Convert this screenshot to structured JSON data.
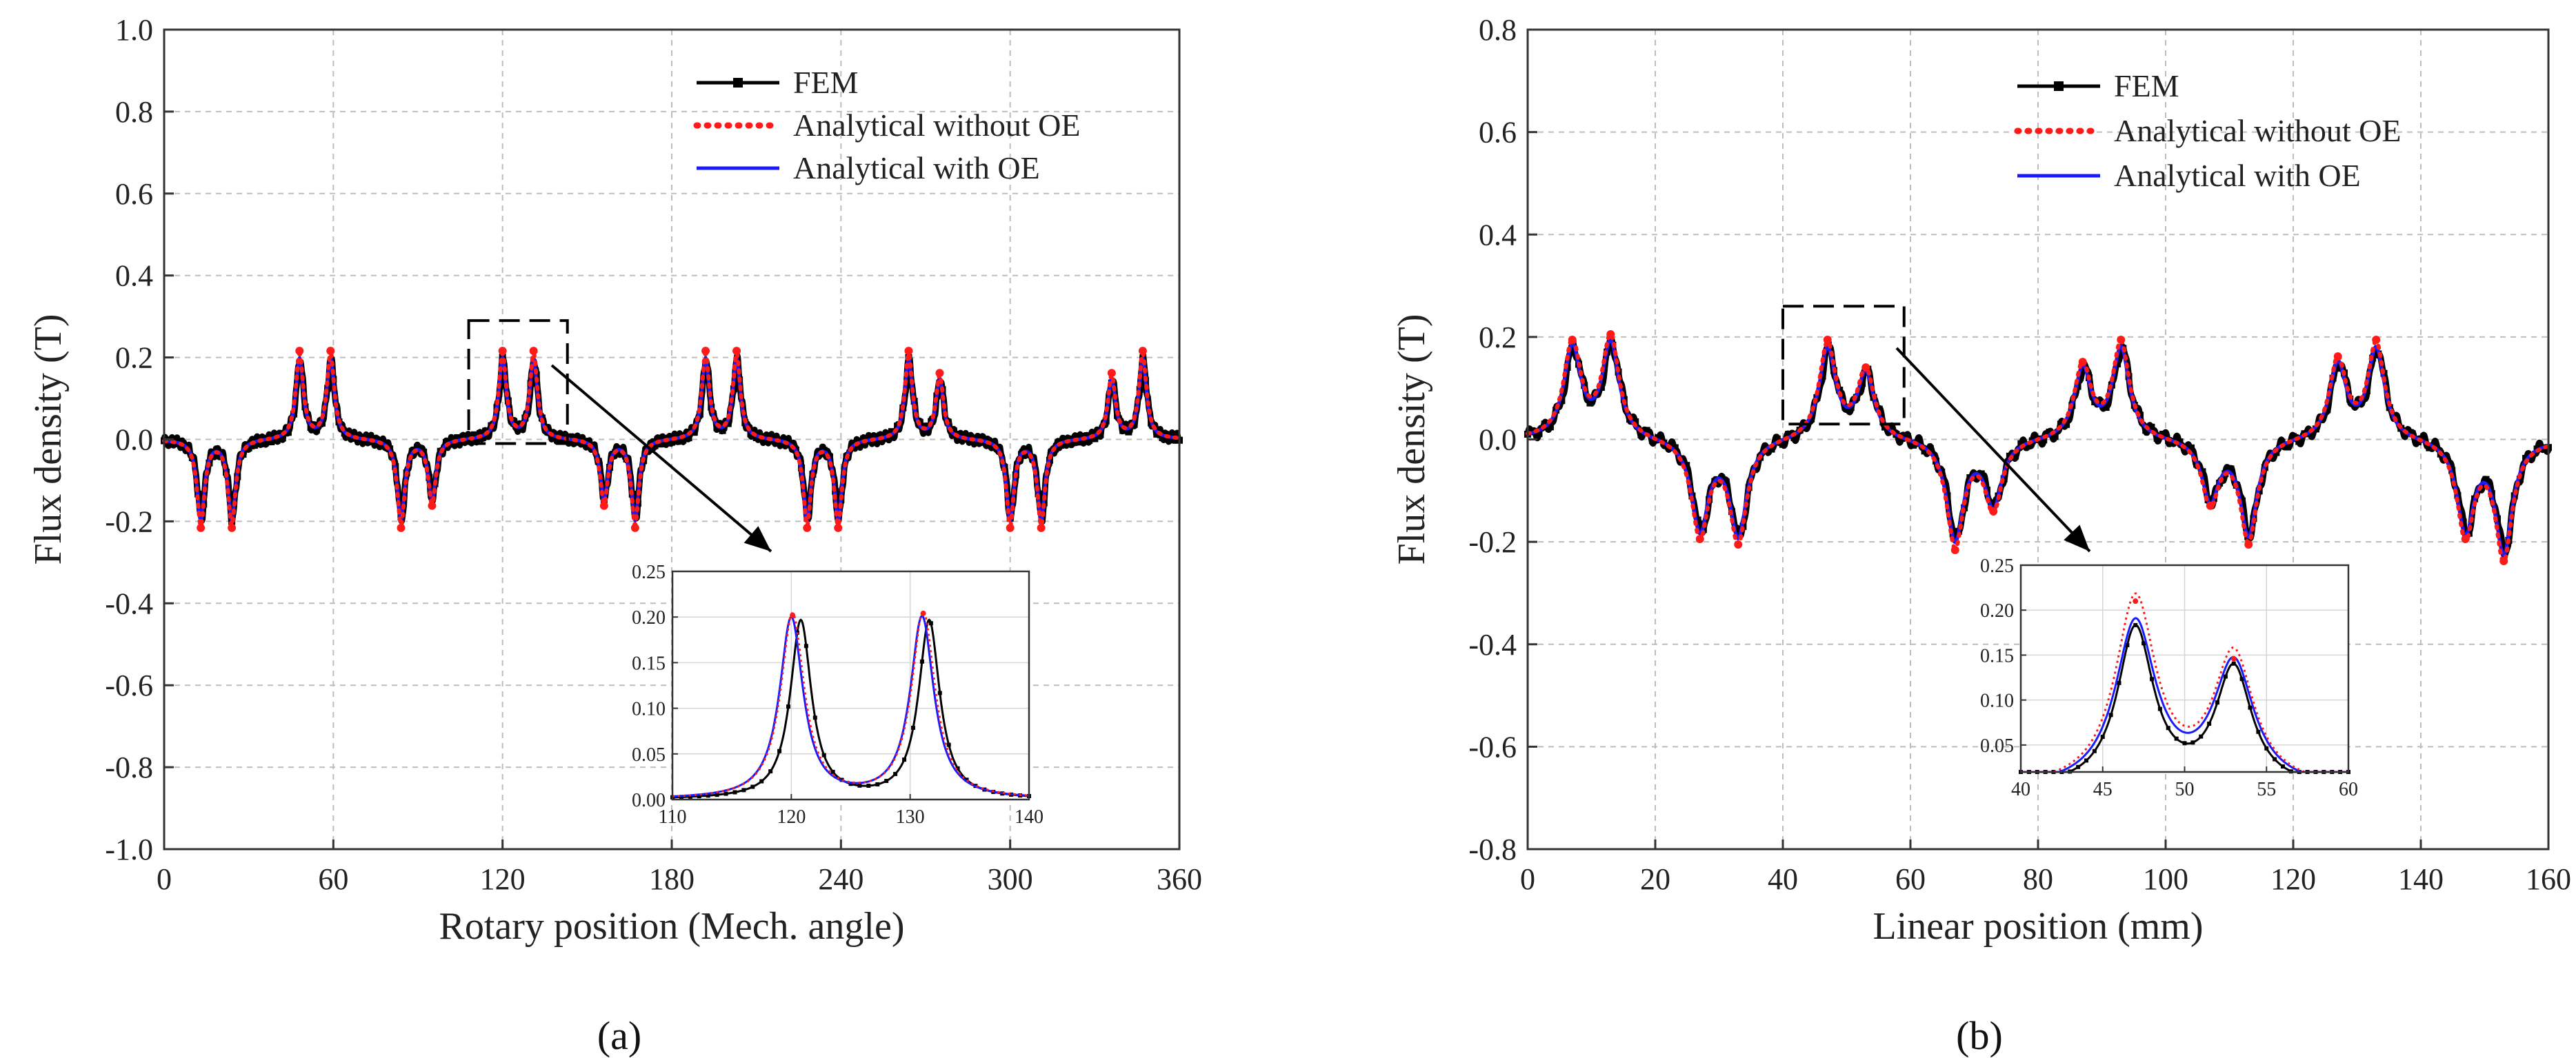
{
  "figure": {
    "captions": [
      "(a)",
      "(b)"
    ]
  },
  "chart_data": [
    {
      "type": "line",
      "panel": "a",
      "xlabel": "Rotary position (Mech. angle)",
      "ylabel": "Flux density (T)",
      "xlim": [
        0,
        360
      ],
      "ylim": [
        -1.0,
        1.0
      ],
      "xticks": [
        0,
        60,
        120,
        180,
        240,
        300,
        360
      ],
      "yticks": [
        -1.0,
        -0.8,
        -0.6,
        -0.4,
        -0.2,
        0.0,
        0.2,
        0.4,
        0.6,
        0.8,
        1.0
      ],
      "grid": true,
      "legend_position": "top-right",
      "series": [
        {
          "name": "FEM",
          "style": "black line with square markers",
          "color": "#000000"
        },
        {
          "name": "Analytical without OE",
          "style": "red dotted",
          "color": "#ff1a1a"
        },
        {
          "name": "Analytical with OE",
          "style": "blue solid",
          "color": "#1a1aff"
        }
      ],
      "peaks": [
        {
          "x": 13,
          "y": -0.2
        },
        {
          "x": 24,
          "y": -0.2
        },
        {
          "x": 48,
          "y": 0.2
        },
        {
          "x": 59,
          "y": 0.2
        },
        {
          "x": 84,
          "y": -0.2
        },
        {
          "x": 95,
          "y": -0.15
        },
        {
          "x": 120,
          "y": 0.2
        },
        {
          "x": 131,
          "y": 0.2
        },
        {
          "x": 156,
          "y": -0.15
        },
        {
          "x": 167,
          "y": -0.2
        },
        {
          "x": 192,
          "y": 0.2
        },
        {
          "x": 203,
          "y": 0.2
        },
        {
          "x": 228,
          "y": -0.2
        },
        {
          "x": 239,
          "y": -0.2
        },
        {
          "x": 264,
          "y": 0.2
        },
        {
          "x": 275,
          "y": 0.15
        },
        {
          "x": 300,
          "y": -0.2
        },
        {
          "x": 311,
          "y": -0.2
        },
        {
          "x": 336,
          "y": 0.15
        },
        {
          "x": 347,
          "y": 0.2
        }
      ],
      "peak_width": 1.6,
      "zoom_box": {
        "xlim": [
          108,
          143
        ],
        "ylim": [
          -0.01,
          0.29
        ]
      },
      "inset": {
        "xlim": [
          110,
          140
        ],
        "ylim": [
          0.0,
          0.25
        ],
        "xticks": [
          110,
          120,
          130,
          140
        ],
        "yticks": [
          0.0,
          0.05,
          0.1,
          0.15,
          0.2,
          0.25
        ],
        "peaks_fem": [
          {
            "x": 120.8,
            "y": 0.195
          },
          {
            "x": 131.6,
            "y": 0.195
          }
        ],
        "peaks_without_oe": [
          {
            "x": 120.1,
            "y": 0.202
          },
          {
            "x": 131.1,
            "y": 0.204
          }
        ],
        "peaks_with_oe": [
          {
            "x": 120.0,
            "y": 0.198
          },
          {
            "x": 131.0,
            "y": 0.199
          }
        ]
      }
    },
    {
      "type": "line",
      "panel": "b",
      "xlabel": "Linear position (mm)",
      "ylabel": "Flux density (T)",
      "xlim": [
        0,
        160
      ],
      "ylim": [
        -0.8,
        0.8
      ],
      "xticks": [
        0,
        20,
        40,
        60,
        80,
        100,
        120,
        140,
        160
      ],
      "yticks": [
        -0.8,
        -0.6,
        -0.4,
        -0.2,
        0.0,
        0.2,
        0.4,
        0.6,
        0.8
      ],
      "grid": true,
      "legend_position": "top-right",
      "series": [
        {
          "name": "FEM",
          "style": "black line with square markers",
          "color": "#000000"
        },
        {
          "name": "Analytical without OE",
          "style": "red dotted",
          "color": "#ff1a1a"
        },
        {
          "name": "Analytical with OE",
          "style": "blue solid",
          "color": "#1a1aff"
        }
      ],
      "peaks": [
        {
          "x": 7,
          "y": 0.18
        },
        {
          "x": 13,
          "y": 0.19
        },
        {
          "x": 27,
          "y": -0.18
        },
        {
          "x": 33,
          "y": -0.19
        },
        {
          "x": 47,
          "y": 0.18
        },
        {
          "x": 53,
          "y": 0.13
        },
        {
          "x": 67,
          "y": -0.2
        },
        {
          "x": 73,
          "y": -0.13
        },
        {
          "x": 87,
          "y": 0.14
        },
        {
          "x": 93,
          "y": 0.18
        },
        {
          "x": 107,
          "y": -0.12
        },
        {
          "x": 113,
          "y": -0.19
        },
        {
          "x": 127,
          "y": 0.15
        },
        {
          "x": 133,
          "y": 0.18
        },
        {
          "x": 147,
          "y": -0.18
        },
        {
          "x": 153,
          "y": -0.22
        }
      ],
      "peak_width": 1.6,
      "zoom_box": {
        "xlim": [
          40,
          59
        ],
        "ylim": [
          0.03,
          0.26
        ]
      },
      "inset": {
        "xlim": [
          40,
          60
        ],
        "ylim": [
          0.02,
          0.25
        ],
        "xticks": [
          40,
          45,
          50,
          55,
          60
        ],
        "yticks": [
          0.05,
          0.1,
          0.15,
          0.2,
          0.25
        ],
        "peaks_fem": [
          {
            "x": 47,
            "y": 0.177
          },
          {
            "x": 53,
            "y": 0.132
          }
        ],
        "peaks_without_oe": [
          {
            "x": 47,
            "y": 0.21
          },
          {
            "x": 53,
            "y": 0.146
          }
        ],
        "peaks_with_oe": [
          {
            "x": 47,
            "y": 0.183
          },
          {
            "x": 53,
            "y": 0.137
          }
        ]
      }
    }
  ]
}
